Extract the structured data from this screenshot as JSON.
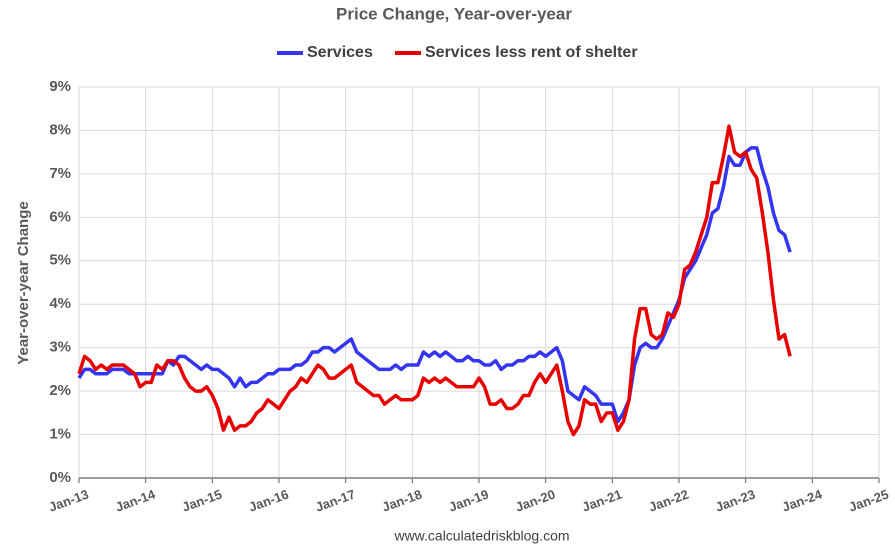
{
  "chart_data": {
    "type": "line",
    "title": "Price Change, Year-over-year",
    "y_label": "Year-over-year Change",
    "source": "www.calculatedriskblog.com",
    "x": [
      "2013-01",
      "2013-02",
      "2013-03",
      "2013-04",
      "2013-05",
      "2013-06",
      "2013-07",
      "2013-08",
      "2013-09",
      "2013-10",
      "2013-11",
      "2013-12",
      "2014-01",
      "2014-02",
      "2014-03",
      "2014-04",
      "2014-05",
      "2014-06",
      "2014-07",
      "2014-08",
      "2014-09",
      "2014-10",
      "2014-11",
      "2014-12",
      "2015-01",
      "2015-02",
      "2015-03",
      "2015-04",
      "2015-05",
      "2015-06",
      "2015-07",
      "2015-08",
      "2015-09",
      "2015-10",
      "2015-11",
      "2015-12",
      "2016-01",
      "2016-02",
      "2016-03",
      "2016-04",
      "2016-05",
      "2016-06",
      "2016-07",
      "2016-08",
      "2016-09",
      "2016-10",
      "2016-11",
      "2016-12",
      "2017-01",
      "2017-02",
      "2017-03",
      "2017-04",
      "2017-05",
      "2017-06",
      "2017-07",
      "2017-08",
      "2017-09",
      "2017-10",
      "2017-11",
      "2017-12",
      "2018-01",
      "2018-02",
      "2018-03",
      "2018-04",
      "2018-05",
      "2018-06",
      "2018-07",
      "2018-08",
      "2018-09",
      "2018-10",
      "2018-11",
      "2018-12",
      "2019-01",
      "2019-02",
      "2019-03",
      "2019-04",
      "2019-05",
      "2019-06",
      "2019-07",
      "2019-08",
      "2019-09",
      "2019-10",
      "2019-11",
      "2019-12",
      "2020-01",
      "2020-02",
      "2020-03",
      "2020-04",
      "2020-05",
      "2020-06",
      "2020-07",
      "2020-08",
      "2020-09",
      "2020-10",
      "2020-11",
      "2020-12",
      "2021-01",
      "2021-02",
      "2021-03",
      "2021-04",
      "2021-05",
      "2021-06",
      "2021-07",
      "2021-08",
      "2021-09",
      "2021-10",
      "2021-11",
      "2021-12",
      "2022-01",
      "2022-02",
      "2022-03",
      "2022-04",
      "2022-05",
      "2022-06",
      "2022-07",
      "2022-08",
      "2022-09",
      "2022-10",
      "2022-11",
      "2022-12",
      "2023-01",
      "2023-02",
      "2023-03",
      "2023-04",
      "2023-05",
      "2023-06",
      "2023-07",
      "2023-08",
      "2023-09"
    ],
    "series": [
      {
        "name": "Services",
        "color": "#3535f0",
        "values": [
          2.3,
          2.5,
          2.5,
          2.4,
          2.4,
          2.4,
          2.5,
          2.5,
          2.5,
          2.4,
          2.4,
          2.4,
          2.4,
          2.4,
          2.4,
          2.4,
          2.7,
          2.6,
          2.8,
          2.8,
          2.7,
          2.6,
          2.5,
          2.6,
          2.5,
          2.5,
          2.4,
          2.3,
          2.1,
          2.3,
          2.1,
          2.2,
          2.2,
          2.3,
          2.4,
          2.4,
          2.5,
          2.5,
          2.5,
          2.6,
          2.6,
          2.7,
          2.9,
          2.9,
          3.0,
          3.0,
          2.9,
          3.0,
          3.1,
          3.2,
          2.9,
          2.8,
          2.7,
          2.6,
          2.5,
          2.5,
          2.5,
          2.6,
          2.5,
          2.6,
          2.6,
          2.6,
          2.9,
          2.8,
          2.9,
          2.8,
          2.9,
          2.8,
          2.7,
          2.7,
          2.8,
          2.7,
          2.7,
          2.6,
          2.6,
          2.7,
          2.5,
          2.6,
          2.6,
          2.7,
          2.7,
          2.8,
          2.8,
          2.9,
          2.8,
          2.9,
          3.0,
          2.7,
          2.0,
          1.9,
          1.8,
          2.1,
          2.0,
          1.9,
          1.7,
          1.7,
          1.7,
          1.3,
          1.5,
          1.8,
          2.6,
          3.0,
          3.1,
          3.0,
          3.0,
          3.2,
          3.5,
          3.8,
          4.1,
          4.6,
          4.8,
          5.0,
          5.3,
          5.6,
          6.1,
          6.2,
          6.7,
          7.4,
          7.2,
          7.2,
          7.5,
          7.6,
          7.6,
          7.1,
          6.7,
          6.1,
          5.7,
          5.6,
          5.2
        ]
      },
      {
        "name": "Services less rent of shelter",
        "color": "#e80000",
        "values": [
          2.4,
          2.8,
          2.7,
          2.5,
          2.6,
          2.5,
          2.6,
          2.6,
          2.6,
          2.5,
          2.4,
          2.1,
          2.2,
          2.2,
          2.6,
          2.5,
          2.7,
          2.7,
          2.6,
          2.3,
          2.1,
          2.0,
          2.0,
          2.1,
          1.9,
          1.6,
          1.1,
          1.4,
          1.1,
          1.2,
          1.2,
          1.3,
          1.5,
          1.6,
          1.8,
          1.7,
          1.6,
          1.8,
          2.0,
          2.1,
          2.3,
          2.2,
          2.4,
          2.6,
          2.5,
          2.3,
          2.3,
          2.4,
          2.5,
          2.6,
          2.2,
          2.1,
          2.0,
          1.9,
          1.9,
          1.7,
          1.8,
          1.9,
          1.8,
          1.8,
          1.8,
          1.9,
          2.3,
          2.2,
          2.3,
          2.2,
          2.3,
          2.2,
          2.1,
          2.1,
          2.1,
          2.1,
          2.3,
          2.1,
          1.7,
          1.7,
          1.8,
          1.6,
          1.6,
          1.7,
          1.9,
          1.9,
          2.2,
          2.4,
          2.2,
          2.4,
          2.6,
          2.0,
          1.3,
          1.0,
          1.2,
          1.8,
          1.7,
          1.7,
          1.3,
          1.5,
          1.5,
          1.1,
          1.3,
          1.8,
          3.2,
          3.9,
          3.9,
          3.3,
          3.2,
          3.3,
          3.8,
          3.7,
          4.0,
          4.8,
          4.9,
          5.2,
          5.6,
          6.0,
          6.8,
          6.8,
          7.4,
          8.1,
          7.5,
          7.4,
          7.5,
          7.1,
          6.9,
          6.1,
          5.2,
          4.1,
          3.2,
          3.3,
          2.8
        ]
      }
    ],
    "xlim": [
      "2013-01",
      "2025-01"
    ],
    "xticks": [
      {
        "value": "2013-01",
        "label": "Jan-13"
      },
      {
        "value": "2014-01",
        "label": "Jan-14"
      },
      {
        "value": "2015-01",
        "label": "Jan-15"
      },
      {
        "value": "2016-01",
        "label": "Jan-16"
      },
      {
        "value": "2017-01",
        "label": "Jan-17"
      },
      {
        "value": "2018-01",
        "label": "Jan-18"
      },
      {
        "value": "2019-01",
        "label": "Jan-19"
      },
      {
        "value": "2020-01",
        "label": "Jan-20"
      },
      {
        "value": "2021-01",
        "label": "Jan-21"
      },
      {
        "value": "2022-01",
        "label": "Jan-22"
      },
      {
        "value": "2023-01",
        "label": "Jan-23"
      },
      {
        "value": "2024-01",
        "label": "Jan-24"
      },
      {
        "value": "2025-01",
        "label": "Jan-25"
      }
    ],
    "ylim": [
      0,
      9
    ],
    "yticks": [
      {
        "value": 0,
        "label": "0%"
      },
      {
        "value": 1,
        "label": "1%"
      },
      {
        "value": 2,
        "label": "2%"
      },
      {
        "value": 3,
        "label": "3%"
      },
      {
        "value": 4,
        "label": "4%"
      },
      {
        "value": 5,
        "label": "5%"
      },
      {
        "value": 6,
        "label": "6%"
      },
      {
        "value": 7,
        "label": "7%"
      },
      {
        "value": 8,
        "label": "8%"
      },
      {
        "value": 9,
        "label": "9%"
      }
    ],
    "grid": true,
    "legend": "top"
  }
}
